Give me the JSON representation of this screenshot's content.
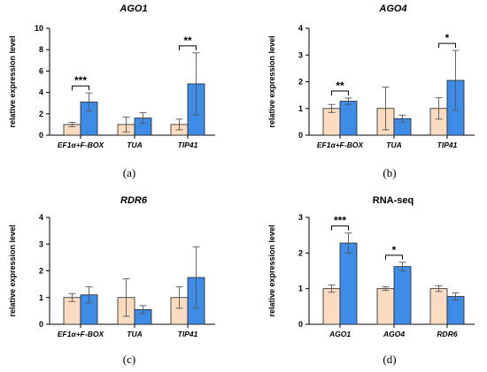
{
  "chart_data": [
    {
      "type": "bar",
      "title": "AGO1",
      "title_italic": true,
      "caption": "(a)",
      "ylabel": "relative expression level",
      "ylim": [
        0,
        10
      ],
      "yticks": [
        0,
        2,
        4,
        6,
        8,
        10
      ],
      "categories": [
        "EF1α+F-BOX",
        "TUA",
        "TIP41"
      ],
      "series": [
        {
          "color": "#fbdcc0",
          "values": [
            1.0,
            1.0,
            1.0
          ],
          "errors": [
            0.2,
            0.7,
            0.5
          ]
        },
        {
          "color": "#3d8de8",
          "values": [
            3.1,
            1.6,
            4.8
          ],
          "errors": [
            0.85,
            0.5,
            2.9
          ]
        }
      ],
      "significance": [
        {
          "category": 0,
          "label": "***"
        },
        {
          "category": 2,
          "label": "**"
        }
      ]
    },
    {
      "type": "bar",
      "title": "AGO4",
      "title_italic": true,
      "caption": "(b)",
      "ylabel": "relative expression level",
      "ylim": [
        0,
        4
      ],
      "yticks": [
        0,
        1,
        2,
        3,
        4
      ],
      "categories": [
        "EF1α+F-BOX",
        "TUA",
        "TIP41"
      ],
      "series": [
        {
          "color": "#fbdcc0",
          "values": [
            1.0,
            1.0,
            1.0
          ],
          "errors": [
            0.15,
            0.8,
            0.4
          ]
        },
        {
          "color": "#3d8de8",
          "values": [
            1.27,
            0.62,
            2.05
          ],
          "errors": [
            0.12,
            0.13,
            1.12
          ]
        }
      ],
      "significance": [
        {
          "category": 0,
          "label": "**"
        },
        {
          "category": 2,
          "label": "*"
        }
      ]
    },
    {
      "type": "bar",
      "title": "RDR6",
      "title_italic": true,
      "caption": "(c)",
      "ylabel": "relative expression level",
      "ylim": [
        0,
        4
      ],
      "yticks": [
        0,
        1,
        2,
        3,
        4
      ],
      "categories": [
        "EF1α+F-BOX",
        "TUA",
        "TIP41"
      ],
      "series": [
        {
          "color": "#fbdcc0",
          "values": [
            1.0,
            1.0,
            1.0
          ],
          "errors": [
            0.15,
            0.7,
            0.4
          ]
        },
        {
          "color": "#3d8de8",
          "values": [
            1.1,
            0.55,
            1.75
          ],
          "errors": [
            0.3,
            0.15,
            1.15
          ]
        }
      ],
      "significance": []
    },
    {
      "type": "bar",
      "title": "RNA-seq",
      "title_italic": false,
      "caption": "(d)",
      "ylabel": "relative expression level",
      "ylim": [
        0,
        3
      ],
      "yticks": [
        0,
        1,
        2,
        3
      ],
      "categories": [
        "AGO1",
        "AGO4",
        "RDR6"
      ],
      "series": [
        {
          "color": "#fbdcc0",
          "values": [
            1.0,
            1.0,
            1.0
          ],
          "errors": [
            0.1,
            0.05,
            0.08
          ]
        },
        {
          "color": "#3d8de8",
          "values": [
            2.28,
            1.62,
            0.78
          ],
          "errors": [
            0.28,
            0.12,
            0.1
          ]
        }
      ],
      "significance": [
        {
          "category": 0,
          "label": "***"
        },
        {
          "category": 1,
          "label": "*"
        }
      ]
    }
  ]
}
